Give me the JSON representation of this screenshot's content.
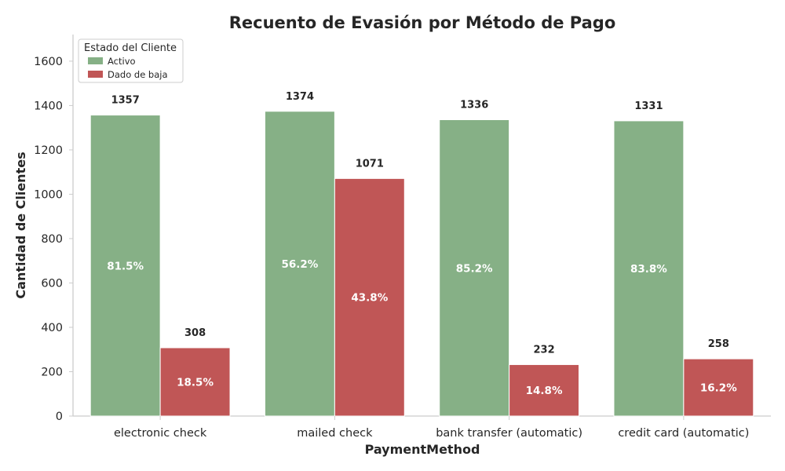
{
  "chart_data": {
    "type": "bar",
    "title": "Recuento de Evasión por Método de Pago",
    "xlabel": "PaymentMethod",
    "ylabel": "Cantidad de Clientes",
    "categories": [
      "electronic check",
      "mailed check",
      "bank transfer (automatic)",
      "credit card (automatic)"
    ],
    "series": [
      {
        "name": "Activo",
        "values": [
          1357,
          1374,
          1336,
          1331
        ],
        "percent_labels": [
          "81.5%",
          "56.2%",
          "85.2%",
          "83.8%"
        ],
        "color": "#86b086"
      },
      {
        "name": "Dado de baja",
        "values": [
          308,
          1071,
          232,
          258
        ],
        "percent_labels": [
          "18.5%",
          "43.8%",
          "14.8%",
          "16.2%"
        ],
        "color": "#c05656"
      }
    ],
    "legend_title": "Estado del Cliente",
    "legend_position": "top-left",
    "ylim": [
      0,
      1720
    ],
    "yticks": [
      0,
      200,
      400,
      600,
      800,
      1000,
      1200,
      1400,
      1600
    ],
    "grid": false
  }
}
